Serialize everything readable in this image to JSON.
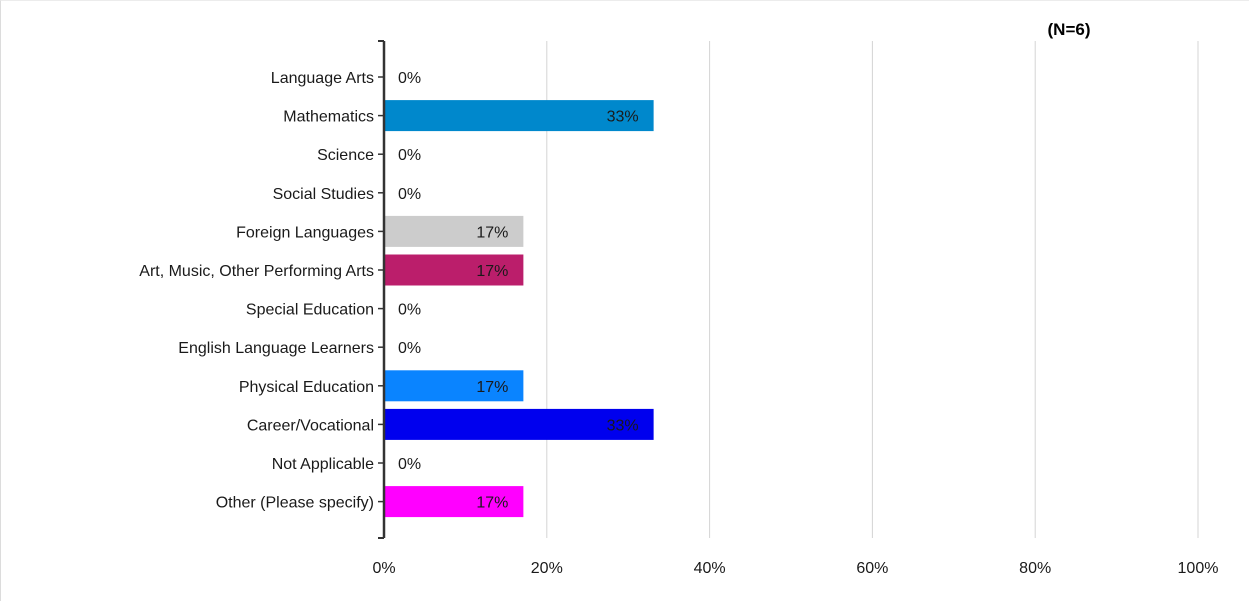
{
  "chart_data": {
    "type": "bar",
    "orientation": "horizontal",
    "note": "(N=6)",
    "categories": [
      "Language Arts",
      "Mathematics",
      "Science",
      "Social Studies",
      "Foreign Languages",
      "Art, Music, Other Performing Arts",
      "Special Education",
      "English Language Learners",
      "Physical Education",
      "Career/Vocational",
      "Not Applicable",
      "Other (Please specify)"
    ],
    "values": [
      0,
      33,
      0,
      0,
      17,
      17,
      0,
      0,
      17,
      33,
      0,
      17
    ],
    "value_labels": [
      "0%",
      "33%",
      "0%",
      "0%",
      "17%",
      "17%",
      "0%",
      "0%",
      "17%",
      "33%",
      "0%",
      "17%"
    ],
    "colors": [
      "#ffffff",
      "#0088cc",
      "#ffffff",
      "#ffffff",
      "#cccccc",
      "#bb1e6b",
      "#ffffff",
      "#ffffff",
      "#0a84ff",
      "#0000ee",
      "#ffffff",
      "#ff00ff"
    ],
    "xlim": [
      0,
      100
    ],
    "x_ticks": [
      0,
      20,
      40,
      60,
      80,
      100
    ],
    "x_tick_labels": [
      "0%",
      "20%",
      "40%",
      "60%",
      "80%",
      "100%"
    ],
    "grid": true
  }
}
